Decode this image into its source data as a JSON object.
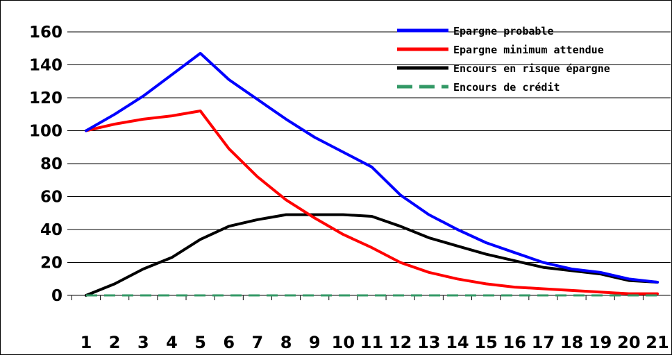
{
  "chart_data": {
    "type": "line",
    "title": "",
    "xlabel": "",
    "ylabel": "",
    "x": [
      1,
      2,
      3,
      4,
      5,
      6,
      7,
      8,
      9,
      10,
      11,
      12,
      13,
      14,
      15,
      16,
      17,
      18,
      19,
      20,
      21
    ],
    "x_tick_labels": [
      "1",
      "2",
      "3",
      "4",
      "5",
      "6",
      "7",
      "8",
      "9",
      "10",
      "11",
      "12",
      "13",
      "14",
      "15",
      "16",
      "17",
      "18",
      "19",
      "20",
      "21"
    ],
    "y_tick_labels": [
      "0",
      "20",
      "40",
      "60",
      "80",
      "100",
      "120",
      "140",
      "160"
    ],
    "ylim": [
      0,
      160
    ],
    "grid": "horizontal",
    "legend_position": "top-right",
    "series": [
      {
        "name": "Epargne probable",
        "color": "#0000ff",
        "style": "solid",
        "values": [
          100,
          110,
          121,
          134,
          147,
          131,
          119,
          107,
          96,
          87,
          78,
          61,
          49,
          40,
          32,
          26,
          20,
          16,
          14,
          10,
          8
        ]
      },
      {
        "name": "Epargne minimum attendue",
        "color": "#ff0000",
        "style": "solid",
        "values": [
          100,
          104,
          107,
          109,
          112,
          89,
          72,
          58,
          47,
          37,
          29,
          20,
          14,
          10,
          7,
          5,
          4,
          3,
          2,
          1,
          1
        ]
      },
      {
        "name": "Encours en risque épargne",
        "color": "#000000",
        "style": "solid",
        "values": [
          0,
          7,
          16,
          23,
          34,
          42,
          46,
          49,
          49,
          49,
          48,
          42,
          35,
          30,
          25,
          21,
          17,
          15,
          13,
          9,
          8
        ]
      },
      {
        "name": "Encours de crédit",
        "color": "#339966",
        "style": "dashed",
        "values": [
          0,
          0,
          0,
          0,
          0,
          0,
          0,
          0,
          0,
          0,
          0,
          0,
          0,
          0,
          0,
          0,
          0,
          0,
          0,
          0,
          0
        ]
      }
    ]
  }
}
